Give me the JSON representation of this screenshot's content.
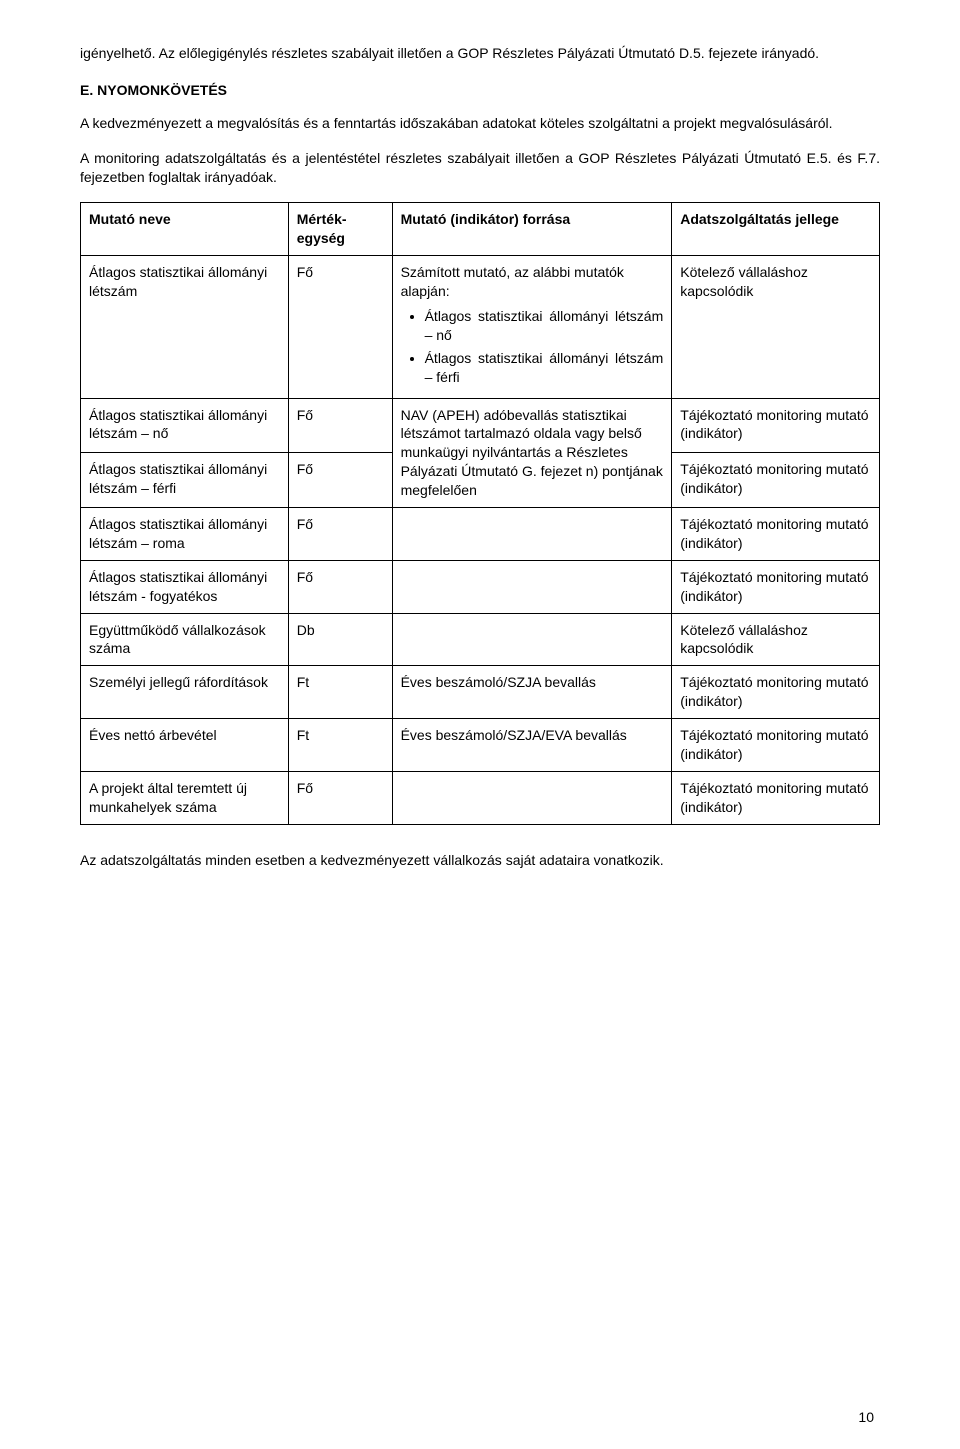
{
  "intro": {
    "p1": "igényelhető. Az előlegigénylés részletes szabályait illetően a GOP Részletes Pályázati Útmutató D.5. fejezete irányadó.",
    "heading": "E. NYOMONKÖVETÉS",
    "p2": "A kedvezményezett a megvalósítás és a fenntartás időszakában adatokat köteles szolgáltatni a projekt megvalósulásáról.",
    "p3": "A monitoring adatszolgáltatás és a jelentéstétel részletes szabályait illetően a GOP Részletes Pályázati Útmutató E.5. és F.7. fejezetben foglaltak irányadóak."
  },
  "table": {
    "headers": {
      "name": "Mutató neve",
      "unit": "Mérték-egység",
      "source": "Mutató (indikátor) forrása",
      "type": "Adatszolgáltatás jellege"
    },
    "rows": [
      {
        "name": "Átlagos statisztikai állományi létszám",
        "unit": "Fő",
        "source_pre": "Számított mutató, az alábbi mutatók alapján:",
        "source_li1": "Átlagos statisztikai állományi létszám – nő",
        "source_li2": "Átlagos statisztikai állományi létszám – férfi",
        "type": "Kötelező vállaláshoz kapcsolódik"
      },
      {
        "name": "Átlagos statisztikai állományi létszám – nő",
        "unit": "Fő",
        "source_shared": "NAV (APEH) adóbevallás statisztikai létszámot tartalmazó oldala vagy belső munkaügyi nyilvántartás a Részletes Pályázati Útmutató G. fejezet n) pontjának megfelelően",
        "type": "Tájékoztató monitoring mutató (indikátor)"
      },
      {
        "name": "Átlagos statisztikai állományi létszám – férfi",
        "unit": "Fő",
        "type": "Tájékoztató monitoring mutató (indikátor)"
      },
      {
        "name": "Átlagos statisztikai állományi létszám – roma",
        "unit": "Fő",
        "source": "",
        "type": "Tájékoztató monitoring mutató (indikátor)"
      },
      {
        "name": "Átlagos statisztikai állományi létszám - fogyatékos",
        "unit": "Fő",
        "source": "",
        "type": "Tájékoztató monitoring mutató (indikátor)"
      },
      {
        "name": "Együttműködő vállalkozások száma",
        "unit": "Db",
        "source": "",
        "type": "Kötelező vállaláshoz kapcsolódik"
      },
      {
        "name": "Személyi jellegű ráfordítások",
        "unit": "Ft",
        "source": "Éves beszámoló/SZJA bevallás",
        "type": "Tájékoztató monitoring mutató (indikátor)"
      },
      {
        "name": "Éves nettó árbevétel",
        "unit": "Ft",
        "source": "Éves beszámoló/SZJA/EVA bevallás",
        "type": "Tájékoztató monitoring mutató (indikátor)"
      },
      {
        "name": "A projekt által teremtett új munkahelyek száma",
        "unit": "Fő",
        "source": "",
        "type": "Tájékoztató monitoring mutató (indikátor)"
      }
    ]
  },
  "outro": "Az adatszolgáltatás minden esetben a kedvezményezett vállalkozás saját adataira vonatkozik.",
  "page_number": "10"
}
